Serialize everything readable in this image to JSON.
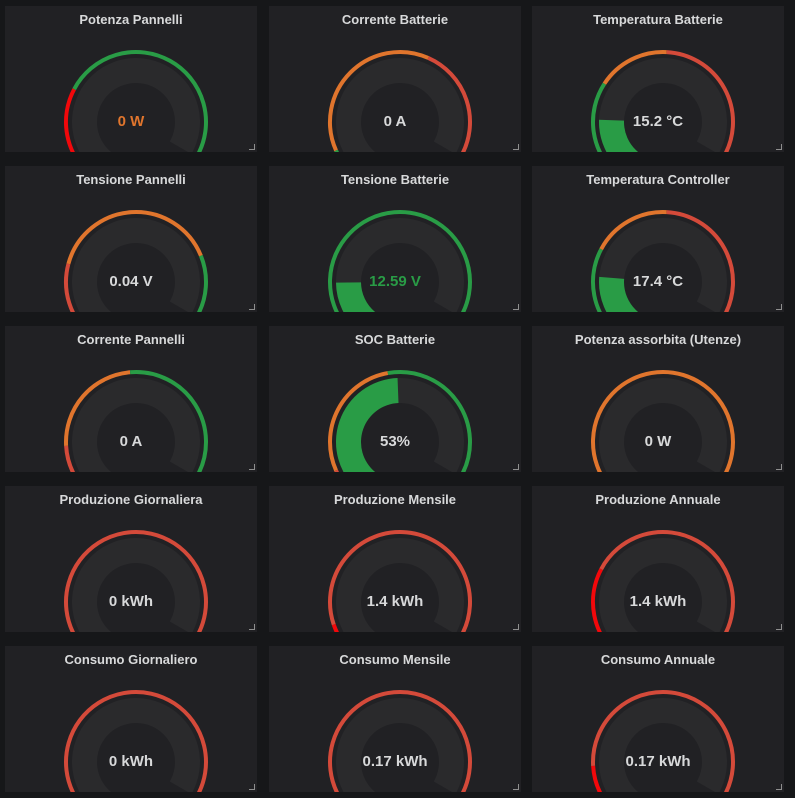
{
  "colors": {
    "green": "#299c46",
    "orange": "#e0752d",
    "red": "#d44a3a",
    "bright_red": "#f2080b",
    "track": "#2a2a2c",
    "text": "#d8d9da"
  },
  "panels": [
    {
      "title": "Potenza Pannelli",
      "value": "0 W",
      "value_color": "#e0752d",
      "ring": [
        {
          "from": 0,
          "to": 0.3,
          "color": "#f2080b"
        },
        {
          "from": 0.3,
          "to": 1,
          "color": "#299c46"
        }
      ],
      "fill": 0,
      "fill_color": "#f2080b"
    },
    {
      "title": "Corrente Batterie",
      "value": "0 A",
      "value_color": "#d8d9da",
      "ring": [
        {
          "from": 0,
          "to": 0.1,
          "color": "#299c46"
        },
        {
          "from": 0.1,
          "to": 0.63,
          "color": "#e0752d"
        },
        {
          "from": 0.63,
          "to": 1,
          "color": "#d44a3a"
        }
      ],
      "fill": 0,
      "fill_color": "#299c46"
    },
    {
      "title": "Temperatura Batterie",
      "value": "15.2 °C",
      "value_color": "#d8d9da",
      "ring": [
        {
          "from": 0,
          "to": 0.32,
          "color": "#299c46"
        },
        {
          "from": 0.32,
          "to": 0.55,
          "color": "#e0752d"
        },
        {
          "from": 0.55,
          "to": 1,
          "color": "#d44a3a"
        }
      ],
      "fill": 0.2,
      "fill_color": "#299c46"
    },
    {
      "title": "Tensione Pannelli",
      "value": "0.04 V",
      "value_color": "#d8d9da",
      "ring": [
        {
          "from": 0,
          "to": 0.25,
          "color": "#d44a3a"
        },
        {
          "from": 0.25,
          "to": 0.8,
          "color": "#e0752d"
        },
        {
          "from": 0.8,
          "to": 1,
          "color": "#299c46"
        }
      ],
      "fill": 0.02,
      "fill_color": "#d44a3a"
    },
    {
      "title": "Tensione Batterie",
      "value": "12.59 V",
      "value_color": "#299c46",
      "ring": [
        {
          "from": 0,
          "to": 0.04,
          "color": "#d44a3a"
        },
        {
          "from": 0.04,
          "to": 1,
          "color": "#299c46"
        }
      ],
      "fill": 0.19,
      "fill_color": "#299c46"
    },
    {
      "title": "Temperatura Controller",
      "value": "17.4 °C",
      "value_color": "#d8d9da",
      "ring": [
        {
          "from": 0,
          "to": 0.3,
          "color": "#299c46"
        },
        {
          "from": 0.3,
          "to": 0.55,
          "color": "#e0752d"
        },
        {
          "from": 0.55,
          "to": 1,
          "color": "#d44a3a"
        }
      ],
      "fill": 0.21,
      "fill_color": "#299c46"
    },
    {
      "title": "Corrente Pannelli",
      "value": "0 A",
      "value_color": "#d8d9da",
      "ring": [
        {
          "from": 0,
          "to": 0.18,
          "color": "#d44a3a"
        },
        {
          "from": 0.18,
          "to": 0.52,
          "color": "#e0752d"
        },
        {
          "from": 0.52,
          "to": 1,
          "color": "#299c46"
        }
      ],
      "fill": 0,
      "fill_color": "#d44a3a"
    },
    {
      "title": "SOC Batterie",
      "value": "53%",
      "value_color": "#d8d9da",
      "ring": [
        {
          "from": 0,
          "to": 0.1,
          "color": "#d44a3a"
        },
        {
          "from": 0.1,
          "to": 0.5,
          "color": "#e0752d"
        },
        {
          "from": 0.5,
          "to": 1,
          "color": "#299c46"
        }
      ],
      "fill": 0.53,
      "fill_color": "#299c46"
    },
    {
      "title": "Potenza assorbita (Utenze)",
      "value": "0 W",
      "value_color": "#d8d9da",
      "ring": [
        {
          "from": 0,
          "to": 0.04,
          "color": "#299c46"
        },
        {
          "from": 0.04,
          "to": 1,
          "color": "#e0752d"
        }
      ],
      "fill": 0,
      "fill_color": "#299c46"
    },
    {
      "title": "Produzione Giornaliera",
      "value": "0 kWh",
      "value_color": "#d8d9da",
      "ring": [
        {
          "from": 0,
          "to": 1,
          "color": "#d44a3a"
        }
      ],
      "fill": 0,
      "fill_color": "#d44a3a"
    },
    {
      "title": "Produzione Mensile",
      "value": "1.4 kWh",
      "value_color": "#d8d9da",
      "ring": [
        {
          "from": 0,
          "to": 0.12,
          "color": "#f2080b"
        },
        {
          "from": 0.12,
          "to": 1,
          "color": "#d44a3a"
        }
      ],
      "fill": 0.01,
      "fill_color": "#f2080b"
    },
    {
      "title": "Produzione Annuale",
      "value": "1.4 kWh",
      "value_color": "#d8d9da",
      "ring": [
        {
          "from": 0,
          "to": 0.3,
          "color": "#f2080b"
        },
        {
          "from": 0.3,
          "to": 1,
          "color": "#d44a3a"
        }
      ],
      "fill": 0.01,
      "fill_color": "#f2080b"
    },
    {
      "title": "Consumo Giornaliero",
      "value": "0 kWh",
      "value_color": "#d8d9da",
      "ring": [
        {
          "from": 0,
          "to": 1,
          "color": "#d44a3a"
        }
      ],
      "fill": 0,
      "fill_color": "#d44a3a"
    },
    {
      "title": "Consumo Mensile",
      "value": "0.17 kWh",
      "value_color": "#d8d9da",
      "ring": [
        {
          "from": 0,
          "to": 1,
          "color": "#d44a3a"
        }
      ],
      "fill": 0.01,
      "fill_color": "#d44a3a"
    },
    {
      "title": "Consumo Annuale",
      "value": "0.17 kWh",
      "value_color": "#d8d9da",
      "ring": [
        {
          "from": 0,
          "to": 0.18,
          "color": "#f2080b"
        },
        {
          "from": 0.18,
          "to": 1,
          "color": "#d44a3a"
        }
      ],
      "fill": 0.01,
      "fill_color": "#f2080b"
    }
  ]
}
